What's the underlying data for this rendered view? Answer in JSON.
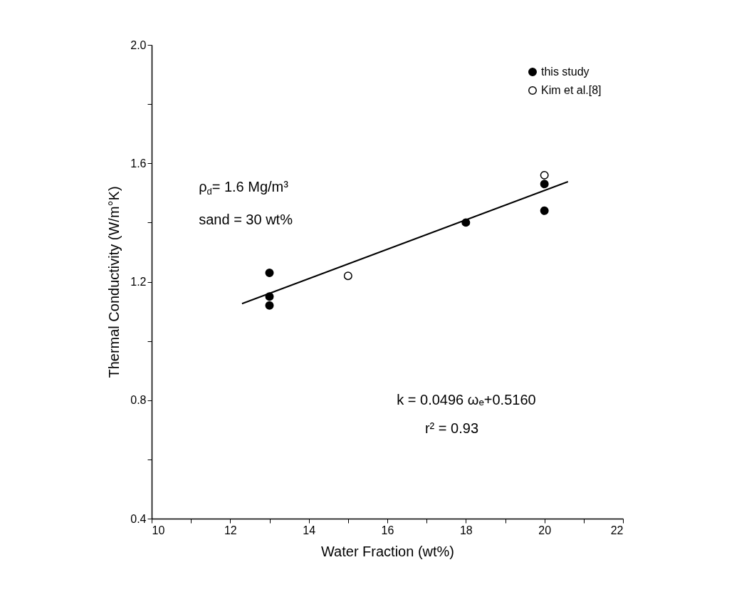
{
  "chart_data": {
    "type": "scatter",
    "xlabel": "Water Fraction (wt%)",
    "ylabel": "Thermal Conductivity (W/m°K)",
    "xlim": [
      10,
      22
    ],
    "ylim": [
      0.4,
      2.0
    ],
    "xticks": [
      10,
      {
        "value": 11,
        "label": null
      },
      12,
      {
        "value": 13,
        "label": null
      },
      14,
      {
        "value": 15,
        "label": null
      },
      16,
      {
        "value": 17,
        "label": null
      },
      18,
      {
        "value": 19,
        "label": null
      },
      20,
      {
        "value": 21,
        "label": null
      },
      22
    ],
    "yticks": [
      0.4,
      {
        "value": 0.6,
        "label": null
      },
      0.8,
      {
        "value": 1.0,
        "label": null
      },
      1.2,
      {
        "value": 1.4,
        "label": null
      },
      1.6,
      {
        "value": 1.8,
        "label": null
      },
      {
        "value": 2.0,
        "label": "2.0"
      }
    ],
    "series": [
      {
        "name": "this study",
        "color": "#000000",
        "marker": "circle",
        "x": [
          13,
          13,
          13,
          18,
          20,
          20
        ],
        "values": [
          1.23,
          1.15,
          1.12,
          1.4,
          1.53,
          1.44
        ]
      },
      {
        "name": "Kim et al.[8]",
        "color": "#ffffff",
        "marker": "circle",
        "x": [
          15,
          20
        ],
        "values": [
          1.22,
          1.56
        ]
      },
      {
        "type": "line",
        "color": "#000000",
        "x": [
          12.3,
          20.6
        ],
        "values": [
          1.126,
          1.538
        ]
      }
    ],
    "annotations": [
      "ρ$_{d}$= 1.6 Mg/m³",
      "sand = 30 wt%",
      "k = 0.0496 ωₑ+0.5160",
      "r² = 0.93"
    ],
    "legend": "top right",
    "grid": false
  }
}
